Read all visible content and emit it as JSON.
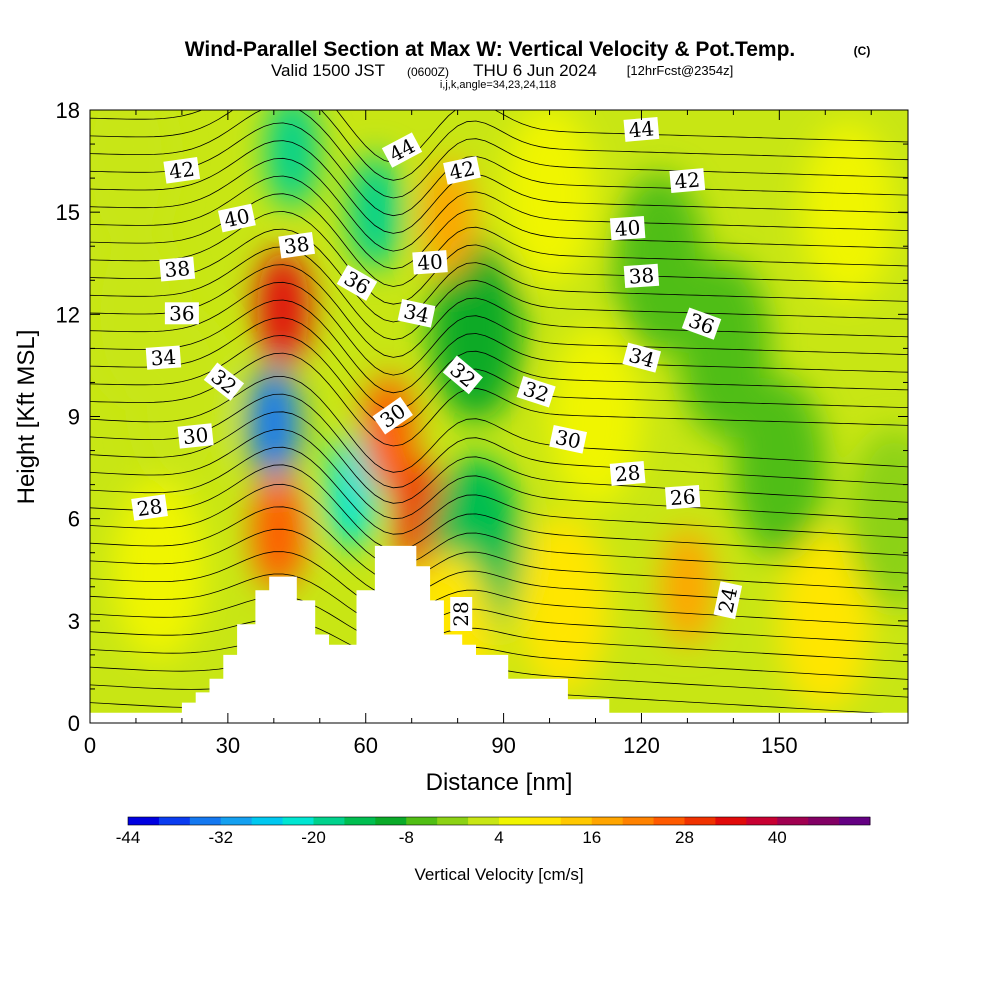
{
  "chart_data": {
    "type": "heatmap",
    "title": "Wind-Parallel Section at Max W: Vertical Velocity & Pot.Temp.",
    "title_mark": "(C)",
    "subtitle_valid": "Valid 1500 JST",
    "subtitle_utc": "(0600Z)",
    "subtitle_date": "THU 6 Jun 2024",
    "subtitle_fcst": "[12hrFcst@2354z]",
    "subtitle_indices": "i,j,k,angle=34,23,24,118",
    "xlabel": "Distance [nm]",
    "ylabel": "Height [Kft MSL]",
    "xlim": [
      0,
      178
    ],
    "ylim": [
      0,
      18
    ],
    "x_ticks": [
      "0",
      "30",
      "60",
      "90",
      "120",
      "150"
    ],
    "y_ticks": [
      "0",
      "3",
      "6",
      "9",
      "12",
      "15",
      "18"
    ],
    "colorbar": {
      "label": "Vertical Velocity [cm/s]",
      "tick_labels": [
        "-44",
        "-32",
        "-20",
        "-8",
        "4",
        "16",
        "28",
        "40"
      ],
      "colors": [
        "#0000e0",
        "#0a3cf0",
        "#1478f0",
        "#14a0f0",
        "#00c8f0",
        "#00e6d2",
        "#00d28c",
        "#00be50",
        "#0aaa28",
        "#50be14",
        "#8cd214",
        "#c8e614",
        "#f0f500",
        "#ffe600",
        "#ffc800",
        "#ffa500",
        "#ff8200",
        "#ff5a00",
        "#f03200",
        "#e10a0a",
        "#c80032",
        "#a00050",
        "#820064",
        "#640082"
      ]
    },
    "terrain": [
      [
        0,
        0.3
      ],
      [
        20,
        0.3
      ],
      [
        20,
        0.6
      ],
      [
        23,
        0.6
      ],
      [
        23,
        0.9
      ],
      [
        26,
        0.9
      ],
      [
        26,
        1.3
      ],
      [
        29,
        1.3
      ],
      [
        29,
        2
      ],
      [
        32,
        2
      ],
      [
        32,
        2.9
      ],
      [
        36,
        2.9
      ],
      [
        36,
        3.9
      ],
      [
        39,
        3.9
      ],
      [
        39,
        4.3
      ],
      [
        45,
        4.3
      ],
      [
        45,
        3.6
      ],
      [
        49,
        3.6
      ],
      [
        49,
        2.6
      ],
      [
        52,
        2.6
      ],
      [
        52,
        2.3
      ],
      [
        58,
        2.3
      ],
      [
        58,
        3.9
      ],
      [
        62,
        3.9
      ],
      [
        62,
        5.2
      ],
      [
        71,
        5.2
      ],
      [
        71,
        4.6
      ],
      [
        74,
        4.6
      ],
      [
        74,
        3.6
      ],
      [
        77,
        3.6
      ],
      [
        77,
        2.6
      ],
      [
        81,
        2.6
      ],
      [
        81,
        2.3
      ],
      [
        84,
        2.3
      ],
      [
        84,
        2
      ],
      [
        91,
        2
      ],
      [
        91,
        1.3
      ],
      [
        104,
        1.3
      ],
      [
        104,
        0.7
      ],
      [
        113,
        0.7
      ],
      [
        113,
        0.3
      ],
      [
        178,
        0.3
      ]
    ],
    "w_cells": [
      {
        "x": 8,
        "y": 16.5,
        "w": 2
      },
      {
        "x": 42,
        "y": 12.2,
        "w": 32
      },
      {
        "x": 44,
        "y": 16.8,
        "w": -18
      },
      {
        "x": 40,
        "y": 8.8,
        "w": -34
      },
      {
        "x": 41,
        "y": 5.6,
        "w": 26
      },
      {
        "x": 57,
        "y": 6.8,
        "w": -24
      },
      {
        "x": 65,
        "y": 8.5,
        "w": 24
      },
      {
        "x": 72,
        "y": 6.0,
        "w": 30
      },
      {
        "x": 84,
        "y": 5.2,
        "w": -14
      },
      {
        "x": 84,
        "y": 11.5,
        "w": -10
      },
      {
        "x": 78,
        "y": 14.8,
        "w": 16
      },
      {
        "x": 62,
        "y": 15.0,
        "w": -18
      },
      {
        "x": 78,
        "y": 2.4,
        "w": 10
      },
      {
        "x": 103,
        "y": 3.5,
        "w": 10
      },
      {
        "x": 130,
        "y": 4.0,
        "w": 18
      },
      {
        "x": 110,
        "y": 9.0,
        "w": 4
      },
      {
        "x": 124,
        "y": 13.5,
        "w": -8
      },
      {
        "x": 138,
        "y": 11.0,
        "w": -8
      },
      {
        "x": 150,
        "y": 7.5,
        "w": -6
      },
      {
        "x": 160,
        "y": 3.0,
        "w": 8
      },
      {
        "x": 175,
        "y": 6.0,
        "w": -4
      },
      {
        "x": 20,
        "y": 9.5,
        "w": 0
      },
      {
        "x": 10,
        "y": 12.0,
        "w": 3
      },
      {
        "x": 15,
        "y": 4.5,
        "w": 4
      },
      {
        "x": 100,
        "y": 15.5,
        "w": 4
      },
      {
        "x": 165,
        "y": 15.0,
        "w": 5
      }
    ],
    "theta_labels": [
      {
        "text": "42",
        "x": 20,
        "y": 16.2,
        "rot": -8
      },
      {
        "text": "40",
        "x": 32,
        "y": 14.8,
        "rot": -12
      },
      {
        "text": "38",
        "x": 19,
        "y": 13.3,
        "rot": -5
      },
      {
        "text": "36",
        "x": 20,
        "y": 12.0,
        "rot": 0
      },
      {
        "text": "34",
        "x": 16,
        "y": 10.7,
        "rot": -4
      },
      {
        "text": "32",
        "x": 29,
        "y": 10.0,
        "rot": 38
      },
      {
        "text": "30",
        "x": 23,
        "y": 8.4,
        "rot": -6
      },
      {
        "text": "28",
        "x": 13,
        "y": 6.3,
        "rot": -8
      },
      {
        "text": "38",
        "x": 45,
        "y": 14.0,
        "rot": -8
      },
      {
        "text": "36",
        "x": 58,
        "y": 12.9,
        "rot": 30
      },
      {
        "text": "44",
        "x": 68,
        "y": 16.8,
        "rot": -28
      },
      {
        "text": "42",
        "x": 81,
        "y": 16.2,
        "rot": -12
      },
      {
        "text": "40",
        "x": 74,
        "y": 13.5,
        "rot": -4
      },
      {
        "text": "34",
        "x": 71,
        "y": 12.0,
        "rot": 12
      },
      {
        "text": "32",
        "x": 81,
        "y": 10.2,
        "rot": 40
      },
      {
        "text": "30",
        "x": 66,
        "y": 9.0,
        "rot": -35
      },
      {
        "text": "28",
        "x": 81,
        "y": 3.2,
        "rot": -90
      },
      {
        "text": "32",
        "x": 97,
        "y": 9.7,
        "rot": 18
      },
      {
        "text": "30",
        "x": 104,
        "y": 8.3,
        "rot": 12
      },
      {
        "text": "28",
        "x": 117,
        "y": 7.3,
        "rot": -5
      },
      {
        "text": "26",
        "x": 129,
        "y": 6.6,
        "rot": -4
      },
      {
        "text": "24",
        "x": 139,
        "y": 3.6,
        "rot": -78
      },
      {
        "text": "44",
        "x": 120,
        "y": 17.4,
        "rot": -5
      },
      {
        "text": "42",
        "x": 130,
        "y": 15.9,
        "rot": -5
      },
      {
        "text": "40",
        "x": 117,
        "y": 14.5,
        "rot": -4
      },
      {
        "text": "38",
        "x": 120,
        "y": 13.1,
        "rot": -4
      },
      {
        "text": "36",
        "x": 133,
        "y": 11.7,
        "rot": 20
      },
      {
        "text": "34",
        "x": 120,
        "y": 10.7,
        "rot": 15
      }
    ]
  }
}
